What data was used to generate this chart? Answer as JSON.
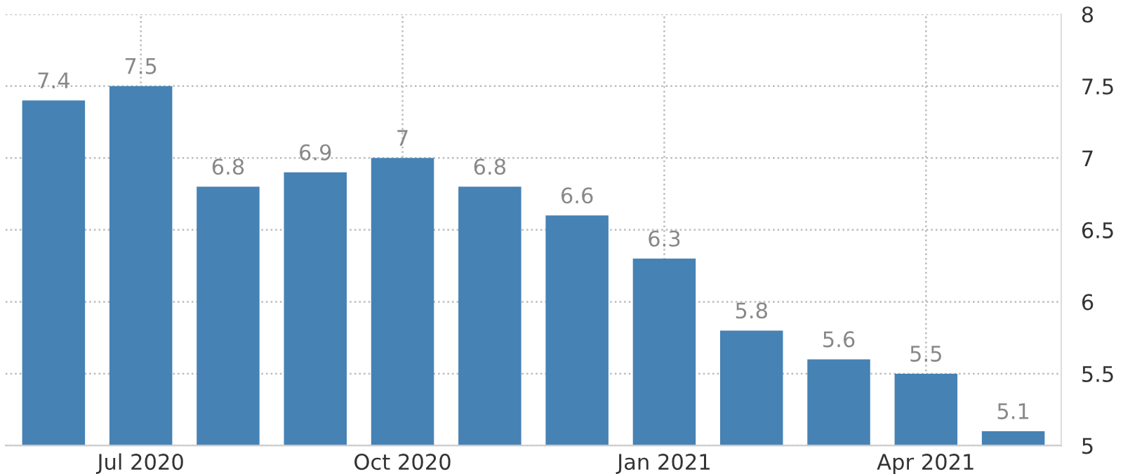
{
  "chart_data": {
    "type": "bar",
    "categories": [
      null,
      "Jul 2020",
      null,
      null,
      "Oct 2020",
      null,
      null,
      "Jan 2021",
      null,
      null,
      "Apr 2021",
      null
    ],
    "values": [
      7.4,
      7.5,
      6.8,
      6.9,
      7,
      6.8,
      6.6,
      6.3,
      5.8,
      5.6,
      5.5,
      5.1
    ],
    "color": "#4682b4",
    "ylim": [
      5,
      8
    ],
    "yticks": [
      5,
      5.5,
      6,
      6.5,
      7,
      7.5,
      8
    ],
    "grid": true,
    "data_labels": true
  }
}
